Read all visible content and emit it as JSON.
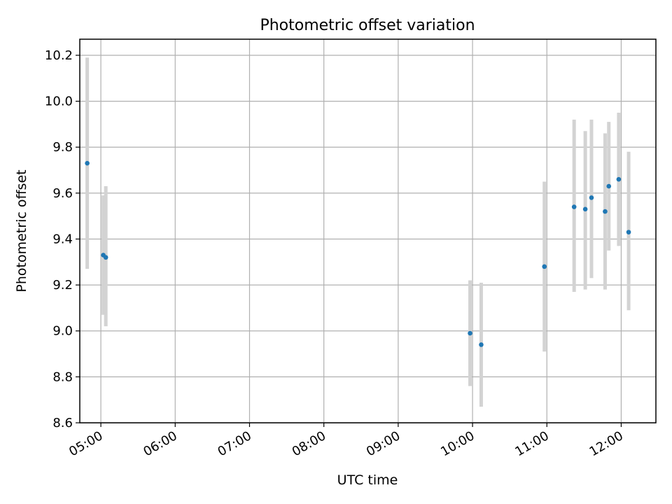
{
  "chart_data": {
    "type": "scatter",
    "title": "Photometric offset variation",
    "xlabel": "UTC time",
    "ylabel": "Photometric offset",
    "grid": true,
    "xlim": [
      "04:43",
      "12:28"
    ],
    "ylim": [
      8.6,
      10.27
    ],
    "x_ticks": [
      "05:00",
      "06:00",
      "07:00",
      "08:00",
      "09:00",
      "10:00",
      "11:00",
      "12:00"
    ],
    "y_ticks": [
      "8.6",
      "8.8",
      "9.0",
      "9.2",
      "9.4",
      "9.6",
      "9.8",
      "10.0",
      "10.2"
    ],
    "point_color": "#1f77b4",
    "errorbar_color": "#d3d3d3",
    "points": [
      {
        "x": "04:49",
        "y": 9.73,
        "low": 9.27,
        "high": 10.19
      },
      {
        "x": "05:02",
        "y": 9.33,
        "low": 9.07,
        "high": 9.59
      },
      {
        "x": "05:04",
        "y": 9.32,
        "low": 9.02,
        "high": 9.63
      },
      {
        "x": "09:58",
        "y": 8.99,
        "low": 8.76,
        "high": 9.22
      },
      {
        "x": "10:07",
        "y": 8.94,
        "low": 8.67,
        "high": 9.21
      },
      {
        "x": "10:58",
        "y": 9.28,
        "low": 8.91,
        "high": 9.65
      },
      {
        "x": "11:22",
        "y": 9.54,
        "low": 9.17,
        "high": 9.92
      },
      {
        "x": "11:31",
        "y": 9.53,
        "low": 9.18,
        "high": 9.87
      },
      {
        "x": "11:36",
        "y": 9.58,
        "low": 9.23,
        "high": 9.92
      },
      {
        "x": "11:47",
        "y": 9.52,
        "low": 9.18,
        "high": 9.86
      },
      {
        "x": "11:50",
        "y": 9.63,
        "low": 9.35,
        "high": 9.91
      },
      {
        "x": "11:58",
        "y": 9.66,
        "low": 9.37,
        "high": 9.95
      },
      {
        "x": "12:06",
        "y": 9.43,
        "low": 9.09,
        "high": 9.78
      }
    ]
  }
}
